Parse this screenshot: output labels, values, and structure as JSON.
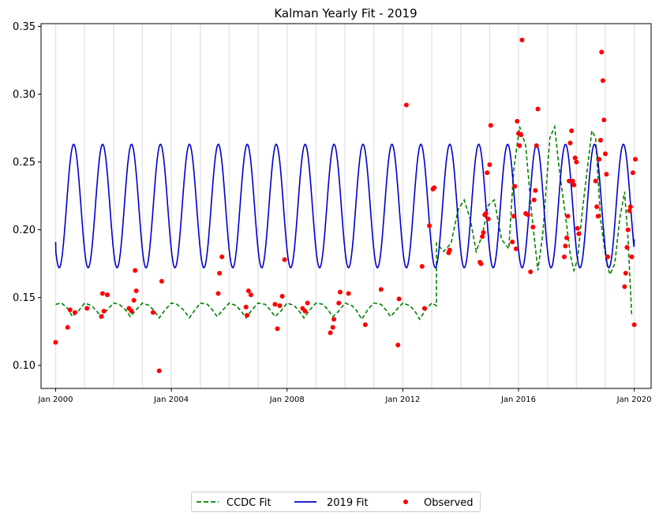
{
  "chart_data": {
    "type": "line",
    "title": "Kalman Yearly Fit - 2019",
    "xlabel": "",
    "ylabel": "",
    "x_axis": {
      "type": "date",
      "range": [
        "1999-07-01",
        "2020-08-01"
      ],
      "ticks": [
        "2000-01-01",
        "2004-01-01",
        "2008-01-01",
        "2012-01-01",
        "2016-01-01",
        "2020-01-01"
      ],
      "tick_labels": [
        "Jan 2000",
        "Jan 2004",
        "Jan 2008",
        "Jan 2012",
        "Jan 2016",
        "Jan 2020"
      ]
    },
    "y_axis": {
      "range": [
        0.083,
        0.352
      ],
      "ticks": [
        0.1,
        0.15,
        0.2,
        0.25,
        0.3,
        0.35
      ],
      "tick_labels": [
        "0.10",
        "0.15",
        "0.20",
        "0.25",
        "0.30",
        "0.35"
      ]
    },
    "legend": {
      "placement": "bottom-center",
      "entries": [
        "CCDC Fit",
        "2019 Fit",
        "Observed"
      ]
    },
    "year_gridlines": true,
    "series": [
      {
        "name": "CCDC Fit",
        "style": "dashed",
        "color": "#008000",
        "description_points": [
          [
            "2000-01-01",
            0.145
          ],
          [
            "2000-03-15",
            0.146
          ],
          [
            "2000-06-01",
            0.142
          ],
          [
            "2000-08-01",
            0.136
          ],
          [
            "2000-10-15",
            0.14
          ],
          [
            "2001-01-01",
            0.146
          ],
          [
            "2001-04-01",
            0.144
          ],
          [
            "2001-06-01",
            0.14
          ],
          [
            "2001-08-01",
            0.136
          ],
          [
            "2001-10-15",
            0.141
          ],
          [
            "2002-01-01",
            0.146
          ],
          [
            "2002-03-15",
            0.145
          ],
          [
            "2002-06-01",
            0.141
          ],
          [
            "2002-08-01",
            0.136
          ],
          [
            "2002-10-15",
            0.141
          ],
          [
            "2003-01-01",
            0.146
          ],
          [
            "2003-04-01",
            0.144
          ],
          [
            "2003-06-01",
            0.14
          ],
          [
            "2003-08-01",
            0.135
          ],
          [
            "2003-10-15",
            0.141
          ],
          [
            "2004-01-01",
            0.146
          ],
          [
            "2004-03-15",
            0.145
          ],
          [
            "2004-06-01",
            0.141
          ],
          [
            "2004-08-15",
            0.135
          ],
          [
            "2004-10-15",
            0.14
          ],
          [
            "2005-01-01",
            0.146
          ],
          [
            "2005-04-01",
            0.145
          ],
          [
            "2005-06-01",
            0.141
          ],
          [
            "2005-08-01",
            0.136
          ],
          [
            "2005-10-15",
            0.141
          ],
          [
            "2006-01-01",
            0.146
          ],
          [
            "2006-04-01",
            0.144
          ],
          [
            "2006-06-01",
            0.14
          ],
          [
            "2006-08-01",
            0.135
          ],
          [
            "2006-10-15",
            0.141
          ],
          [
            "2007-01-01",
            0.146
          ],
          [
            "2007-04-01",
            0.145
          ],
          [
            "2007-06-01",
            0.141
          ],
          [
            "2007-08-01",
            0.136
          ],
          [
            "2007-10-15",
            0.14
          ],
          [
            "2008-01-01",
            0.146
          ],
          [
            "2008-04-01",
            0.144
          ],
          [
            "2008-06-01",
            0.14
          ],
          [
            "2008-08-01",
            0.135
          ],
          [
            "2008-10-15",
            0.141
          ],
          [
            "2009-01-01",
            0.146
          ],
          [
            "2009-04-01",
            0.145
          ],
          [
            "2009-06-01",
            0.141
          ],
          [
            "2009-08-01",
            0.136
          ],
          [
            "2009-10-15",
            0.14
          ],
          [
            "2010-01-01",
            0.146
          ],
          [
            "2010-04-01",
            0.144
          ],
          [
            "2010-06-01",
            0.14
          ],
          [
            "2010-08-01",
            0.134
          ],
          [
            "2010-10-15",
            0.141
          ],
          [
            "2011-01-01",
            0.146
          ],
          [
            "2011-04-01",
            0.145
          ],
          [
            "2011-06-01",
            0.141
          ],
          [
            "2011-08-01",
            0.136
          ],
          [
            "2011-10-15",
            0.141
          ],
          [
            "2012-01-01",
            0.146
          ],
          [
            "2012-04-01",
            0.144
          ],
          [
            "2012-06-01",
            0.14
          ],
          [
            "2012-08-01",
            0.134
          ],
          [
            "2012-10-15",
            0.141
          ],
          [
            "2013-01-01",
            0.146
          ],
          [
            "2013-03-01",
            0.144
          ],
          [
            "2013-03-02",
            0.19
          ],
          [
            "2013-06-01",
            0.184
          ],
          [
            "2013-09-01",
            0.19
          ],
          [
            "2013-12-01",
            0.215
          ],
          [
            "2014-02-15",
            0.222
          ],
          [
            "2014-05-01",
            0.208
          ],
          [
            "2014-07-15",
            0.184
          ],
          [
            "2014-10-01",
            0.196
          ],
          [
            "2014-12-15",
            0.218
          ],
          [
            "2015-03-01",
            0.222
          ],
          [
            "2015-06-01",
            0.193
          ],
          [
            "2015-09-01",
            0.186
          ],
          [
            "2015-11-01",
            0.244
          ],
          [
            "2016-01-15",
            0.276
          ],
          [
            "2016-04-01",
            0.262
          ],
          [
            "2016-06-15",
            0.212
          ],
          [
            "2016-09-01",
            0.17
          ],
          [
            "2016-11-01",
            0.196
          ],
          [
            "2017-02-01",
            0.268
          ],
          [
            "2017-04-01",
            0.276
          ],
          [
            "2017-06-01",
            0.243
          ],
          [
            "2017-08-15",
            0.211
          ],
          [
            "2017-10-15",
            0.182
          ],
          [
            "2017-12-01",
            0.17
          ],
          [
            "2018-01-15",
            0.178
          ],
          [
            "2018-03-15",
            0.213
          ],
          [
            "2018-05-15",
            0.243
          ],
          [
            "2018-07-15",
            0.273
          ],
          [
            "2018-09-01",
            0.268
          ],
          [
            "2018-11-01",
            0.208
          ],
          [
            "2019-01-15",
            0.176
          ],
          [
            "2019-03-01",
            0.167
          ],
          [
            "2019-05-01",
            0.175
          ],
          [
            "2019-07-01",
            0.208
          ],
          [
            "2019-09-01",
            0.228
          ],
          [
            "2019-10-15",
            0.193
          ],
          [
            "2019-12-01",
            0.136
          ]
        ]
      },
      {
        "name": "2019 Fit",
        "style": "solid",
        "color": "#0000cc",
        "model": {
          "kind": "sinusoid",
          "mean": 0.2175,
          "amplitude": 0.0455,
          "period_years": 1.0,
          "peak_month": 8,
          "start": "2000-01-01",
          "end": "2020-01-01",
          "start_value": 0.191,
          "end_value": 0.193
        }
      },
      {
        "name": "Observed",
        "style": "points",
        "color": "#ff0000",
        "points": [
          [
            "2000-01-01",
            0.117
          ],
          [
            "2000-06-01",
            0.128
          ],
          [
            "2000-07-01",
            0.141
          ],
          [
            "2000-09-01",
            0.139
          ],
          [
            "2001-02-01",
            0.142
          ],
          [
            "2001-08-01",
            0.136
          ],
          [
            "2001-08-15",
            0.153
          ],
          [
            "2001-09-01",
            0.14
          ],
          [
            "2001-10-15",
            0.152
          ],
          [
            "2002-07-15",
            0.142
          ],
          [
            "2002-08-15",
            0.14
          ],
          [
            "2002-09-15",
            0.148
          ],
          [
            "2002-10-01",
            0.17
          ],
          [
            "2002-10-15",
            0.155
          ],
          [
            "2003-05-15",
            0.139
          ],
          [
            "2003-08-01",
            0.096
          ],
          [
            "2003-09-01",
            0.162
          ],
          [
            "2005-08-15",
            0.153
          ],
          [
            "2005-09-01",
            0.168
          ],
          [
            "2005-10-01",
            0.18
          ],
          [
            "2006-08-01",
            0.143
          ],
          [
            "2006-08-15",
            0.137
          ],
          [
            "2006-09-01",
            0.155
          ],
          [
            "2006-10-01",
            0.152
          ],
          [
            "2007-08-01",
            0.145
          ],
          [
            "2007-09-01",
            0.127
          ],
          [
            "2007-10-01",
            0.144
          ],
          [
            "2007-11-01",
            0.151
          ],
          [
            "2007-12-01",
            0.178
          ],
          [
            "2008-07-15",
            0.142
          ],
          [
            "2008-08-15",
            0.14
          ],
          [
            "2008-09-15",
            0.146
          ],
          [
            "2009-07-01",
            0.124
          ],
          [
            "2009-08-01",
            0.128
          ],
          [
            "2009-08-15",
            0.134
          ],
          [
            "2009-10-15",
            0.146
          ],
          [
            "2009-11-01",
            0.154
          ],
          [
            "2010-02-15",
            0.153
          ],
          [
            "2010-09-15",
            0.13
          ],
          [
            "2011-04-01",
            0.156
          ],
          [
            "2011-11-01",
            0.115
          ],
          [
            "2011-11-15",
            0.149
          ],
          [
            "2012-02-15",
            0.292
          ],
          [
            "2012-09-01",
            0.173
          ],
          [
            "2012-10-01",
            0.142
          ],
          [
            "2012-12-01",
            0.203
          ],
          [
            "2013-01-15",
            0.23
          ],
          [
            "2013-02-01",
            0.231
          ],
          [
            "2013-08-01",
            0.183
          ],
          [
            "2013-08-15",
            0.185
          ],
          [
            "2014-09-01",
            0.176
          ],
          [
            "2014-09-15",
            0.175
          ],
          [
            "2014-10-01",
            0.195
          ],
          [
            "2014-10-15",
            0.198
          ],
          [
            "2014-11-01",
            0.211
          ],
          [
            "2014-11-15",
            0.212
          ],
          [
            "2014-12-01",
            0.242
          ],
          [
            "2014-12-15",
            0.208
          ],
          [
            "2015-01-01",
            0.248
          ],
          [
            "2015-01-15",
            0.277
          ],
          [
            "2015-10-15",
            0.191
          ],
          [
            "2015-11-01",
            0.21
          ],
          [
            "2015-11-15",
            0.232
          ],
          [
            "2015-12-01",
            0.186
          ],
          [
            "2015-12-15",
            0.28
          ],
          [
            "2016-01-01",
            0.271
          ],
          [
            "2016-01-15",
            0.262
          ],
          [
            "2016-02-01",
            0.27
          ],
          [
            "2016-02-15",
            0.34
          ],
          [
            "2016-04-01",
            0.212
          ],
          [
            "2016-05-01",
            0.211
          ],
          [
            "2016-06-01",
            0.169
          ],
          [
            "2016-07-01",
            0.202
          ],
          [
            "2016-07-15",
            0.222
          ],
          [
            "2016-08-01",
            0.229
          ],
          [
            "2016-08-15",
            0.262
          ],
          [
            "2016-09-01",
            0.289
          ],
          [
            "2017-08-01",
            0.18
          ],
          [
            "2017-08-15",
            0.188
          ],
          [
            "2017-09-01",
            0.194
          ],
          [
            "2017-09-15",
            0.21
          ],
          [
            "2017-10-01",
            0.236
          ],
          [
            "2017-10-15",
            0.264
          ],
          [
            "2017-11-01",
            0.273
          ],
          [
            "2017-11-15",
            0.236
          ],
          [
            "2017-12-01",
            0.233
          ],
          [
            "2017-12-15",
            0.253
          ],
          [
            "2018-01-01",
            0.25
          ],
          [
            "2018-01-15",
            0.201
          ],
          [
            "2018-02-01",
            0.197
          ],
          [
            "2018-09-01",
            0.236
          ],
          [
            "2018-09-15",
            0.217
          ],
          [
            "2018-10-01",
            0.21
          ],
          [
            "2018-10-15",
            0.252
          ],
          [
            "2018-11-01",
            0.266
          ],
          [
            "2018-11-15",
            0.331
          ],
          [
            "2018-12-01",
            0.31
          ],
          [
            "2018-12-15",
            0.281
          ],
          [
            "2019-01-01",
            0.256
          ],
          [
            "2019-01-15",
            0.241
          ],
          [
            "2019-02-01",
            0.18
          ],
          [
            "2019-09-01",
            0.158
          ],
          [
            "2019-09-15",
            0.168
          ],
          [
            "2019-10-01",
            0.187
          ],
          [
            "2019-10-15",
            0.2
          ],
          [
            "2019-11-01",
            0.214
          ],
          [
            "2019-11-15",
            0.217
          ],
          [
            "2019-12-01",
            0.18
          ],
          [
            "2019-12-15",
            0.242
          ],
          [
            "2020-01-01",
            0.13
          ],
          [
            "2020-01-15",
            0.252
          ]
        ]
      }
    ]
  }
}
